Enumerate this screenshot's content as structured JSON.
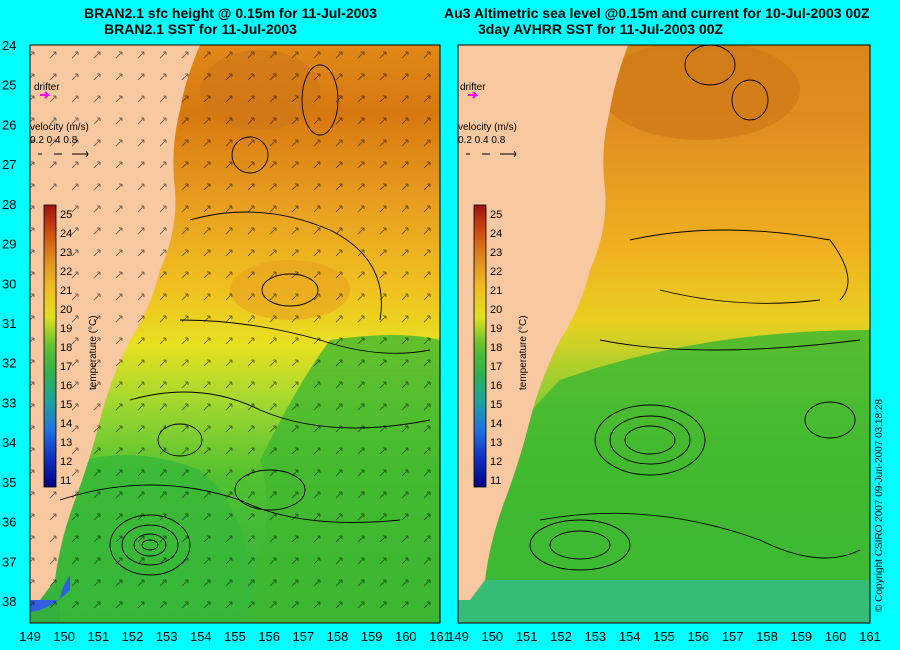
{
  "panels": [
    {
      "title_line1": "BRAN2.1 sfc height @ 0.15m for 11-Jul-2003",
      "title_line2": "BRAN2.1 SST for 11-Jul-2003"
    },
    {
      "title_line1": "Au3 Altimetric sea level  @0.15m and current for 10-Jul-2003 00Z",
      "title_line2": "3day AVHRR SST for 11-Jul-2003 00Z"
    }
  ],
  "axes": {
    "lat_labels": [
      "24",
      "25",
      "26",
      "27",
      "28",
      "29",
      "30",
      "31",
      "32",
      "33",
      "34",
      "35",
      "36",
      "37",
      "38"
    ],
    "lon_labels": [
      "149",
      "150",
      "151",
      "152",
      "153",
      "154",
      "155",
      "156",
      "157",
      "158",
      "159",
      "160",
      "161"
    ]
  },
  "legend": {
    "drifter_label": "drifter",
    "velocity_label": "velocity (m/s)",
    "velocity_values": "0.2 0.4 0.8",
    "colorbar_title": "temperature (°C)",
    "colorbar_ticks": [
      "25",
      "24",
      "23",
      "22",
      "21",
      "20",
      "19",
      "18",
      "17",
      "16",
      "15",
      "14",
      "13",
      "12",
      "11"
    ]
  },
  "copyright": "© Copyright CSIRO 2007   09-Jun-2007 03:18:28",
  "colors": {
    "background": "#00ffff",
    "land": "#f8c8a0",
    "warm": "#e09020",
    "yellow": "#f0e020",
    "green": "#30c030",
    "drifter": "#ff00ff"
  }
}
